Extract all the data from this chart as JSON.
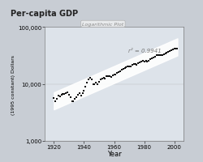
{
  "title": "Per-capita GDP",
  "xlabel": "Year",
  "ylabel": "(1995 constant) Dollars",
  "annotation": "r² = 0.9941",
  "log_label": "Logarithmic Plot",
  "outer_bg": "#c8cdd4",
  "plot_bg": "#dde3ea",
  "years": [
    1920,
    1921,
    1922,
    1923,
    1924,
    1925,
    1926,
    1927,
    1928,
    1929,
    1930,
    1931,
    1932,
    1933,
    1934,
    1935,
    1936,
    1937,
    1938,
    1939,
    1940,
    1941,
    1942,
    1943,
    1944,
    1945,
    1946,
    1947,
    1948,
    1949,
    1950,
    1951,
    1952,
    1953,
    1954,
    1955,
    1956,
    1957,
    1958,
    1959,
    1960,
    1961,
    1962,
    1963,
    1964,
    1965,
    1966,
    1967,
    1968,
    1969,
    1970,
    1971,
    1972,
    1973,
    1974,
    1975,
    1976,
    1977,
    1978,
    1979,
    1980,
    1981,
    1982,
    1983,
    1984,
    1985,
    1986,
    1987,
    1988,
    1989,
    1990,
    1991,
    1992,
    1993,
    1994,
    1995,
    1996,
    1997,
    1998,
    1999,
    2000,
    2001,
    2002
  ],
  "gdp": [
    5700,
    5000,
    5500,
    6200,
    6100,
    6400,
    6700,
    6700,
    6900,
    7200,
    6500,
    5900,
    5000,
    4900,
    5500,
    5800,
    6500,
    6800,
    6300,
    6800,
    7500,
    9000,
    10500,
    12000,
    13000,
    12000,
    10000,
    10000,
    10500,
    10000,
    11000,
    11800,
    12200,
    13000,
    12500,
    13500,
    13500,
    13700,
    13400,
    14200,
    14500,
    14700,
    15500,
    16000,
    16800,
    17500,
    18500,
    18800,
    19600,
    20000,
    19900,
    20400,
    21400,
    22500,
    22000,
    21800,
    22800,
    23500,
    24700,
    25500,
    25000,
    25500,
    24500,
    25500,
    27500,
    28500,
    29000,
    30000,
    31500,
    32000,
    32000,
    31500,
    32500,
    33500,
    34500,
    35000,
    36000,
    37500,
    39000,
    40500,
    42000,
    41000,
    42000
  ],
  "fit_start_year": 1920,
  "fit_end_year": 2002,
  "ylim": [
    1000,
    100000
  ],
  "xlim": [
    1914,
    2006
  ],
  "yticks": [
    1000,
    10000,
    100000
  ],
  "xticks": [
    1920,
    1940,
    1960,
    1980,
    2000
  ],
  "ytick_labels": [
    "1,000",
    "10,000",
    "100,000"
  ]
}
